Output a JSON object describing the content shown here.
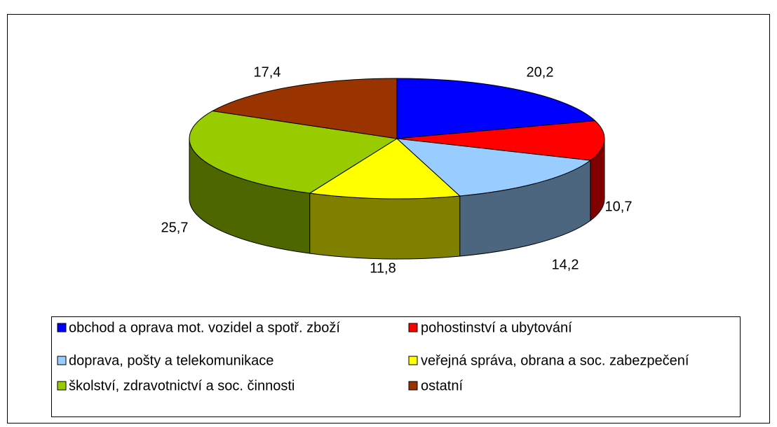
{
  "chart_data": {
    "type": "pie",
    "categories": [
      "obchod a oprava mot. vozidel a spotř. zboží",
      "pohostinství a ubytování",
      "doprava, pošty a telekomunikace",
      "veřejná správa, obrana a soc. zabezpečení",
      "školství, zdravotnictví a soc. činnosti",
      "ostatní"
    ],
    "values": [
      20.2,
      10.7,
      14.2,
      11.8,
      25.7,
      17.4
    ],
    "value_labels": [
      "20,2",
      "10,7",
      "14,2",
      "11,8",
      "25,7",
      "17,4"
    ],
    "colors": [
      "#0000ff",
      "#ff0000",
      "#99ccff",
      "#ffff00",
      "#99cc00",
      "#993300"
    ],
    "legend": "bottom"
  }
}
